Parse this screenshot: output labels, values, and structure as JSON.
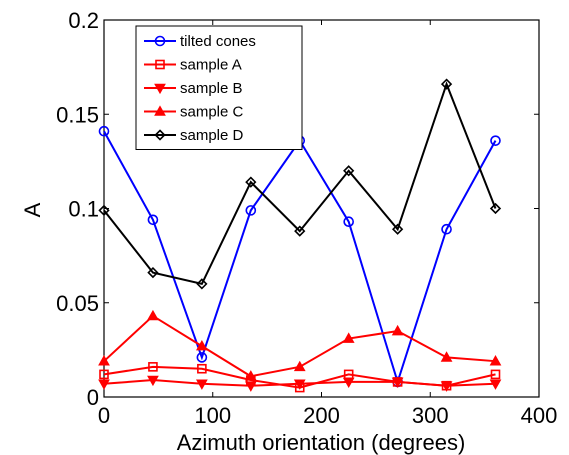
{
  "chart_data": {
    "type": "line",
    "xlabel": "Azimuth orientation (degrees)",
    "ylabel": "A",
    "xlim": [
      0,
      400
    ],
    "ylim": [
      0,
      0.2
    ],
    "xticks": [
      0,
      100,
      200,
      300,
      400
    ],
    "xtick_labels": [
      "0",
      "100",
      "200",
      "300",
      "400"
    ],
    "yticks": [
      0,
      0.05,
      0.1,
      0.15,
      0.2
    ],
    "ytick_labels": [
      "0",
      "0.05",
      "0.1",
      "0.15",
      "0.2"
    ],
    "grid": false,
    "legend_position": "top-left",
    "x": [
      0,
      45,
      90,
      135,
      180,
      225,
      270,
      315,
      360
    ],
    "series": [
      {
        "name": "tilted cones",
        "color": "#0000ff",
        "marker": "circle",
        "values": [
          0.141,
          0.094,
          0.021,
          0.099,
          0.136,
          0.093,
          0.008,
          0.089,
          0.136
        ]
      },
      {
        "name": "sample A",
        "color": "#ff0000",
        "marker": "square",
        "values": [
          0.012,
          0.016,
          0.015,
          0.009,
          0.005,
          0.012,
          0.008,
          0.006,
          0.012
        ]
      },
      {
        "name": "sample B",
        "color": "#ff0000",
        "marker": "triangle-down",
        "values": [
          0.007,
          0.009,
          0.007,
          0.006,
          0.007,
          0.008,
          0.008,
          0.006,
          0.007
        ]
      },
      {
        "name": "sample C",
        "color": "#ff0000",
        "marker": "triangle-up",
        "values": [
          0.019,
          0.043,
          0.027,
          0.011,
          0.016,
          0.031,
          0.035,
          0.021,
          0.019
        ]
      },
      {
        "name": "sample D",
        "color": "#000000",
        "marker": "diamond",
        "values": [
          0.099,
          0.066,
          0.06,
          0.114,
          0.088,
          0.12,
          0.089,
          0.166,
          0.1
        ]
      }
    ]
  }
}
